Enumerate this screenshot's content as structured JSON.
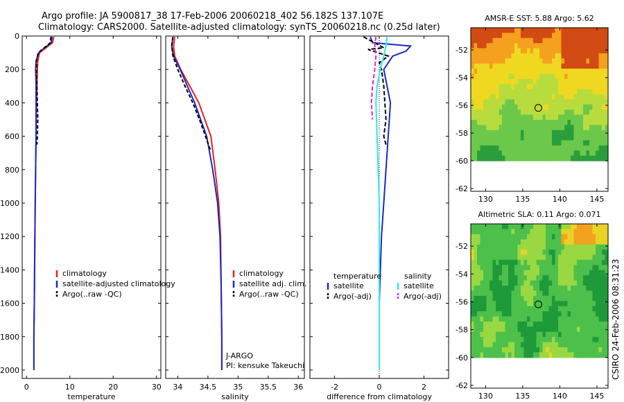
{
  "title_line1": "Argo profile: JA 5900817_38 17-Feb-2006 20060218_402 56.182S 137.107E",
  "title_line2": "Climatology: CARS2000. Satellite-adjusted climatology: synTS_20060218.nc (0.25d later)",
  "side_label": "CSIRO 24-Feb-2006 08:31:23",
  "colors": {
    "climatology": "#e8201c",
    "satellite": "#1a28c8",
    "argo": "#000000",
    "cyan": "#2ee8e8",
    "magenta": "#e020e0"
  },
  "chart_data": [
    {
      "type": "line",
      "id": "temperature",
      "xlabel": "temperature",
      "ylabel": "",
      "xlim": [
        -1,
        31
      ],
      "ylim": [
        0,
        2050
      ],
      "xticks": [
        0,
        10,
        20,
        30
      ],
      "yticks": [
        0,
        200,
        400,
        600,
        800,
        1000,
        1200,
        1400,
        1600,
        1800,
        2000
      ],
      "legend": {
        "placement": "lower-right",
        "entries": [
          {
            "label": "climatology",
            "color": "#e8201c"
          },
          {
            "label": "satellite-adjusted climatology",
            "color": "#1a28c8"
          },
          {
            "label": "Argo(..raw -QC)",
            "color": "#000000"
          }
        ]
      },
      "series": [
        {
          "name": "climatology",
          "color": "#e8201c",
          "dash": "",
          "x": [
            6.3,
            6.0,
            4.5,
            3.0,
            2.6,
            2.5,
            2.4,
            2.3,
            2.2,
            2.1,
            2.0,
            1.9,
            1.8,
            1.7,
            1.7
          ],
          "y": [
            5,
            40,
            70,
            100,
            150,
            200,
            300,
            400,
            600,
            800,
            1000,
            1300,
            1600,
            1800,
            2000
          ]
        },
        {
          "name": "satellite",
          "color": "#1a28c8",
          "dash": "",
          "x": [
            5.9,
            5.7,
            4.2,
            2.8,
            2.2,
            2.1,
            2.2,
            2.2,
            2.2,
            2.1,
            2.0,
            1.9,
            1.8,
            1.7,
            1.7
          ],
          "y": [
            5,
            40,
            70,
            100,
            150,
            200,
            300,
            400,
            600,
            800,
            1000,
            1300,
            1600,
            1800,
            2000
          ]
        },
        {
          "name": "argo",
          "color": "#000000",
          "dash": "5,3",
          "x": [
            5.6,
            5.5,
            4.1,
            2.7,
            2.3,
            2.3,
            2.4,
            2.5,
            2.6,
            2.5,
            2.4
          ],
          "y": [
            5,
            40,
            70,
            100,
            150,
            200,
            300,
            400,
            500,
            600,
            650
          ]
        }
      ]
    },
    {
      "type": "line",
      "id": "salinity",
      "xlabel": "salinity",
      "ylabel": "",
      "xlim": [
        33.8,
        36.1
      ],
      "ylim": [
        0,
        2050
      ],
      "xticks": [
        34,
        34.5,
        35,
        35.5,
        36
      ],
      "xticklabels": [
        "34",
        "34.5",
        "35",
        "35.5",
        "36"
      ],
      "legend": {
        "placement": "lower-right",
        "entries": [
          {
            "label": "climatology",
            "color": "#e8201c"
          },
          {
            "label": "satellite adj. clim.",
            "color": "#1a28c8"
          },
          {
            "label": "Argo(..raw -QC)",
            "color": "#000000"
          }
        ]
      },
      "annotations": [
        "J-ARGO",
        "PI: kensuke Takeuchi"
      ],
      "series": [
        {
          "name": "climatology",
          "color": "#e8201c",
          "dash": "",
          "x": [
            33.95,
            33.93,
            33.95,
            34.05,
            34.2,
            34.35,
            34.45,
            34.55,
            34.62,
            34.68,
            34.71,
            34.72,
            34.73,
            34.73
          ],
          "y": [
            5,
            60,
            120,
            200,
            300,
            400,
            500,
            600,
            800,
            1000,
            1200,
            1500,
            1800,
            2000
          ]
        },
        {
          "name": "satellite",
          "color": "#1a28c8",
          "dash": "",
          "x": [
            33.92,
            33.9,
            33.93,
            34.04,
            34.16,
            34.28,
            34.38,
            34.48,
            34.58,
            34.66,
            34.7,
            34.72,
            34.73,
            34.73
          ],
          "y": [
            5,
            60,
            120,
            200,
            300,
            400,
            500,
            600,
            800,
            1000,
            1200,
            1500,
            1800,
            2000
          ]
        },
        {
          "name": "argo",
          "color": "#000000",
          "dash": "5,3",
          "x": [
            33.92,
            33.9,
            33.92,
            34.0,
            34.12,
            34.25,
            34.36,
            34.46,
            34.54
          ],
          "y": [
            5,
            60,
            120,
            200,
            300,
            400,
            500,
            600,
            680
          ]
        }
      ]
    },
    {
      "type": "line",
      "id": "difference",
      "xlabel": "difference from climatology",
      "ylabel": "",
      "xlim": [
        -3.1,
        3.1
      ],
      "ylim": [
        0,
        2050
      ],
      "xticks": [
        -2,
        0,
        2
      ],
      "legend": {
        "placement": "lower-center",
        "entries": [
          {
            "group": "temperature",
            "label": "satellite",
            "color": "#1a28c8"
          },
          {
            "group": "temperature",
            "label": "Argo(-adj)",
            "color": "#000000"
          },
          {
            "group": "salinity",
            "label": "satellite",
            "color": "#2ee8e8"
          },
          {
            "group": "salinity",
            "label": "Argo(-adj)",
            "color": "#e020e0"
          }
        ]
      },
      "legend_headers": [
        "temperature",
        "salinity"
      ],
      "series": [
        {
          "name": "temp-satellite",
          "color": "#1a28c8",
          "dash": "",
          "x": [
            -0.4,
            -0.3,
            1.4,
            1.2,
            0.6,
            0.2,
            0.35,
            0.5,
            0.4,
            0.3,
            0.2,
            0.1,
            0.05,
            0.0,
            0.0,
            0.0
          ],
          "y": [
            5,
            40,
            60,
            90,
            120,
            200,
            300,
            400,
            600,
            800,
            1000,
            1200,
            1400,
            1600,
            1800,
            2000
          ]
        },
        {
          "name": "temp-argo",
          "color": "#000000",
          "dash": "6,3",
          "x": [
            -0.7,
            0.2,
            -0.5,
            0.4,
            0.0,
            0.1,
            0.2,
            0.25,
            0.3,
            0.2,
            0.3
          ],
          "y": [
            5,
            70,
            80,
            120,
            160,
            200,
            300,
            400,
            500,
            600,
            650
          ]
        },
        {
          "name": "sal-satellite",
          "color": "#2ee8e8",
          "dash": "",
          "x": [
            0.35,
            0.3,
            0.2,
            0.05,
            -0.1,
            -0.15,
            -0.1,
            -0.05,
            0.0,
            0.0,
            0.0
          ],
          "y": [
            5,
            60,
            120,
            200,
            300,
            400,
            600,
            800,
            1000,
            1500,
            2000
          ]
        },
        {
          "name": "sal-argo",
          "color": "#e020e0",
          "dash": "6,3",
          "x": [
            -0.15,
            -0.2,
            -0.15,
            -0.2,
            -0.3,
            -0.35,
            -0.3
          ],
          "y": [
            5,
            60,
            120,
            200,
            300,
            400,
            500
          ]
        }
      ]
    },
    {
      "type": "heatmap",
      "id": "sst-map",
      "title": "AMSR-E SST: 5.88 Argo: 5.62",
      "xlim": [
        128,
        146.5
      ],
      "ylim": [
        -62.2,
        -50.4
      ],
      "xticks": [
        130,
        135,
        140,
        145
      ],
      "yticks": [
        -52,
        -54,
        -56,
        -58,
        -60,
        -62
      ],
      "marker": {
        "lon": 137.107,
        "lat": -56.182
      },
      "field_range": [
        -60,
        -50.4
      ],
      "palette": [
        "#2a9e3c",
        "#6cc84a",
        "#b8dc3e",
        "#f0d820",
        "#f5a01e",
        "#d24a14"
      ]
    },
    {
      "type": "heatmap",
      "id": "sla-map",
      "title": "Altimetric SLA: 0.11 Argo: 0.071",
      "xlim": [
        128,
        146.5
      ],
      "ylim": [
        -62.2,
        -50.4
      ],
      "xticks": [
        130,
        135,
        140,
        145
      ],
      "yticks": [
        -52,
        -54,
        -56,
        -58,
        -60,
        -62
      ],
      "marker": {
        "lon": 137.107,
        "lat": -56.182
      },
      "field_range": [
        -60,
        -50.4
      ],
      "palette": [
        "#1e9a3a",
        "#4cc04a",
        "#9ad842",
        "#e8d226",
        "#f2a21e",
        "#cf5a1a"
      ]
    }
  ]
}
